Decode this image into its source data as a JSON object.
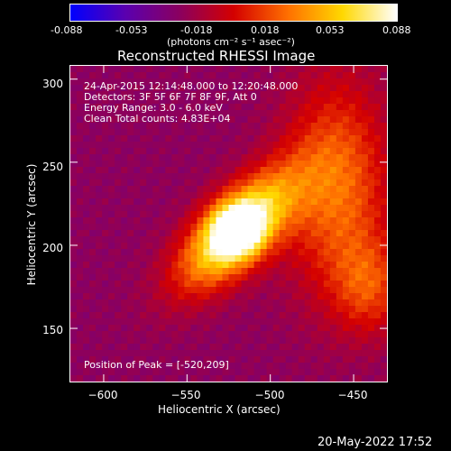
{
  "colorbar": {
    "ticks": [
      "-0.088",
      "-0.053",
      "-0.018",
      "0.018",
      "0.053",
      "0.088"
    ],
    "unit_label": "(photons cm⁻² s⁻¹ asec⁻²)",
    "range": [
      -0.088,
      0.088
    ],
    "colors": [
      "#0000ff",
      "#5a00b0",
      "#8a0060",
      "#d40000",
      "#ff7000",
      "#ffd800",
      "#ffffff"
    ]
  },
  "chart_data": {
    "type": "heatmap",
    "title": "Reconstructed RHESSI Image",
    "xlabel": "Heliocentric X (arcsec)",
    "ylabel": "Heliocentric Y (arcsec)",
    "xlim": [
      -620,
      -430
    ],
    "ylim": [
      118,
      308
    ],
    "x_ticks": [
      -600,
      -550,
      -500,
      -450
    ],
    "y_ticks": [
      150,
      200,
      250,
      300
    ],
    "x_tick_labels": [
      "−600",
      "−550",
      "−500",
      "−450"
    ],
    "y_tick_labels": [
      "150",
      "200",
      "250",
      "300"
    ],
    "peak": [
      -520,
      209
    ],
    "annotations": [
      "24-Apr-2015 12:14:48.000 to 12:20:48.000",
      "Detectors: 3F 5F 6F 7F 8F 9F, Att 0",
      "Energy Range: 3.0 - 6.0 keV",
      "Clean     Total counts: 4.83E+04"
    ],
    "peak_label": "Position of Peak = [-520,209]"
  },
  "footer": {
    "date": "20-May-2022 17:52"
  }
}
